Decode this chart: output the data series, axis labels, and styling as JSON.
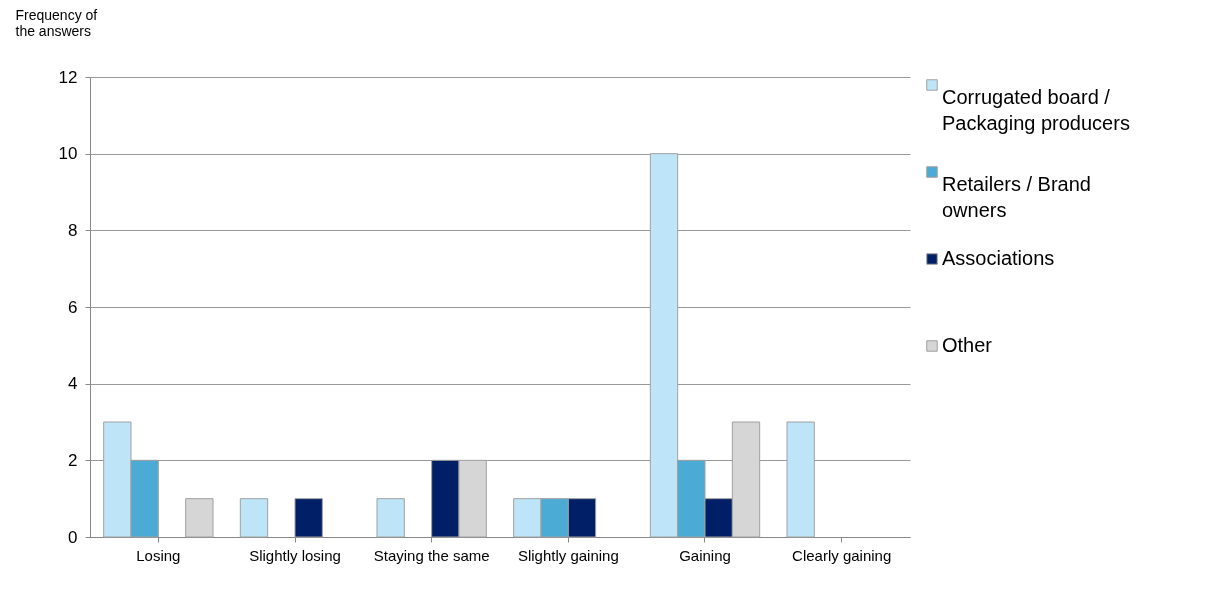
{
  "chart_data": {
    "type": "bar",
    "ylabel": "Frequency of the answers",
    "categories": [
      "Losing",
      "Slightly losing",
      "Staying the same",
      "Slightly gaining",
      "Gaining",
      "Clearly gaining"
    ],
    "series": [
      {
        "name": "Corrugated board / Packaging producers",
        "color": "#bde5f7",
        "values": [
          3,
          1,
          1,
          1,
          10,
          3
        ]
      },
      {
        "name": "Retailers / Brand owners",
        "color": "#4babd5",
        "values": [
          2,
          0,
          0,
          1,
          2,
          0
        ]
      },
      {
        "name": "Associations",
        "color": "#001f66",
        "values": [
          0,
          1,
          2,
          1,
          1,
          0
        ]
      },
      {
        "name": "Other",
        "color": "#d6d6d6",
        "values": [
          1,
          0,
          2,
          0,
          3,
          0
        ]
      }
    ],
    "ylim": [
      0,
      12
    ],
    "yticks": [
      0,
      2,
      4,
      6,
      8,
      10,
      12
    ],
    "grid": "y",
    "legend": "top right"
  }
}
